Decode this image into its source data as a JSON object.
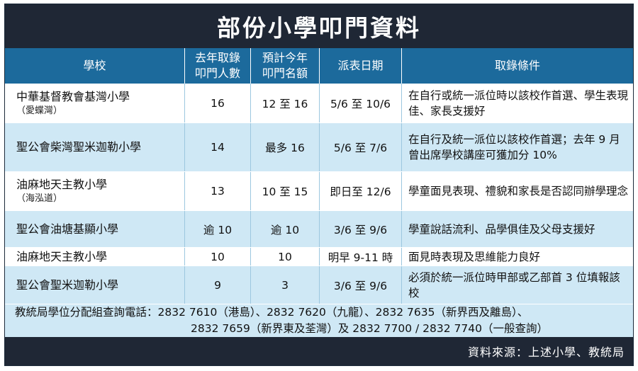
{
  "title": "部份小學叩門資料",
  "headers": {
    "school": "學校",
    "last_year_l1": "去年取錄",
    "last_year_l2": "叩門人數",
    "est_l1": "預計今年",
    "est_l2": "叩門名額",
    "dates": "派表日期",
    "conditions": "取錄條件"
  },
  "rows": [
    {
      "school": "中華基督教會基灣小學",
      "sub": "（愛蝶灣）",
      "last_year": "16",
      "estimate": "12 至 16",
      "dates": "5/6 至 10/6",
      "conditions": "在自行或統一派位時以該校作首選、學生表現佳、家長支援好"
    },
    {
      "school": "聖公會柴灣聖米迦勒小學",
      "sub": "",
      "last_year": "14",
      "estimate": "最多 16",
      "dates": "5/6 至 7/6",
      "conditions": "在自行及統一派位以該校作首選；去年 9 月曾出席學校講座可獲加分 10%"
    },
    {
      "school": "油麻地天主教小學",
      "sub": "（海泓道）",
      "last_year": "13",
      "estimate": "10 至 15",
      "dates": "即日至 12/6",
      "conditions": "學童面見表現、禮貌和家長是否認同辦學理念"
    },
    {
      "school": "聖公會油塘基顯小學",
      "sub": "",
      "last_year": "逾 10",
      "estimate": "逾 10",
      "dates": "3/6 至 9/6",
      "conditions": "學童說話流利、品學俱佳及父母支援好"
    },
    {
      "school": "油麻地天主教小學",
      "sub": "",
      "last_year": "10",
      "estimate": "10",
      "dates": "明早 9-11 時",
      "conditions": "面見時表現及思維能力良好"
    },
    {
      "school": "聖公會聖米迦勒小學",
      "sub": "",
      "last_year": "9",
      "estimate": "3",
      "dates": "3/6 至 9/6",
      "conditions": "必須於統一派位時甲部或乙部首 3 位填報該校"
    }
  ],
  "footer": {
    "line1": "教統局學位分配組查詢電話：2832 7610（港島）、2832 7620（九龍）、2832 7635（新界西及離島）、",
    "line2": "2832 7659（新界東及荃灣）及 2832 7700 / 2832 7740（一般查詢）"
  },
  "source": "資料來源：上述小學、教統局",
  "colors": {
    "title_bg": "#1f2735",
    "header_bg": "#1c6a9c",
    "row_blue": "#cfe8f5",
    "row_white": "#ffffff"
  }
}
